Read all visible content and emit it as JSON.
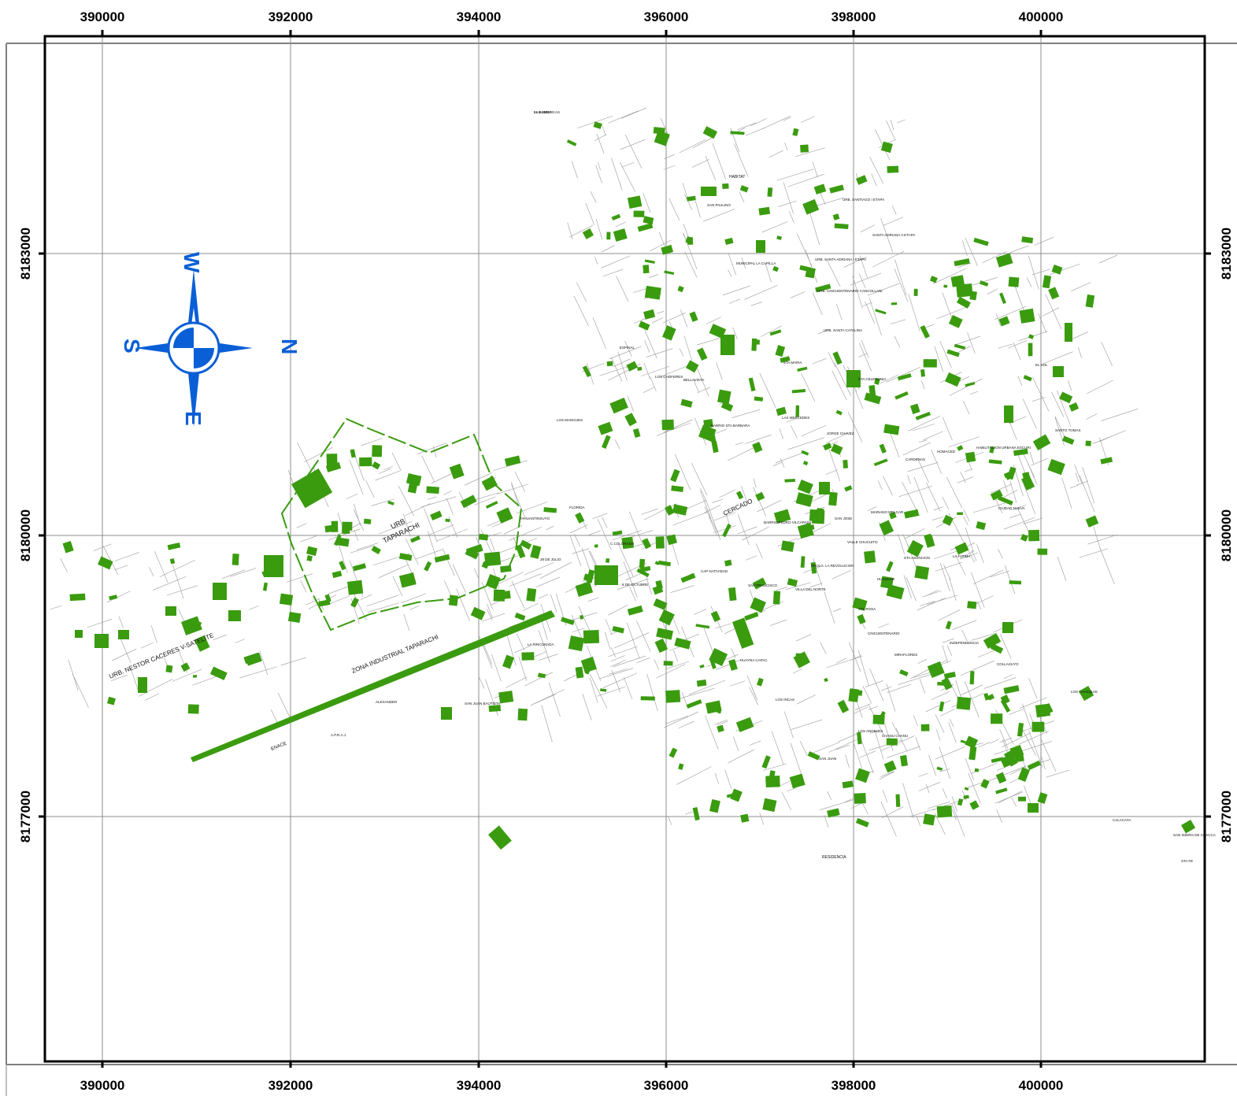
{
  "map": {
    "colors": {
      "green_area": "#3a9b0f",
      "grid_line": "#8c8c8c",
      "frame": "#000000",
      "compass": "#0a5fd6",
      "street": "#9a9a9a"
    },
    "grid": {
      "x_ticks": [
        "390000",
        "392000",
        "394000",
        "396000",
        "398000",
        "400000"
      ],
      "y_ticks": [
        "8183000",
        "8180000",
        "8177000"
      ]
    },
    "compass": {
      "top": "W",
      "right": "N",
      "bottom": "E",
      "left": "S",
      "icon": "compass-rose-icon"
    },
    "labels": {
      "major": [
        "URB",
        "TAPARACHI",
        "ZONA INDUSTRIAL TAPARACHI",
        "URB. NESTOR CACERES V-SATELITE",
        "CERCADO",
        "ENACE",
        "HABITAT",
        "RESIDENCIA"
      ],
      "minor": [
        "LAS AMERICAS",
        "SAN PAULINO",
        "URB. SANTIAGO I ETAPA",
        "SANTA ADRIANA II ETAPA",
        "URB. SANTA ADRIANA I ETAPA",
        "MUNICIPAL LA CAPILLA",
        "URB. CINCUENTENARIO CANCOLLANI",
        "URB. SANTA CATALINA",
        "STA MARIA",
        "ESPINAL",
        "LOS CHOFERES",
        "BELLAVISTA",
        "BARRIO STA BARBARA",
        "LAS MERCEDES",
        "JORGE CHAVEZ",
        "STA CELEDONIA",
        "LOS MANGUES",
        "FLORIDA",
        "TAHUANTINSUYO",
        "28 DE JULIO",
        "C.COLORADO",
        "8 DE OCTUBRE",
        "BARRIO PEDRO VILCAPAZA",
        "SAN JOSE",
        "MARIANO MELGAR",
        "CIUDAD NUEVA",
        "HUASCAR",
        "VALLE CHUCUITO",
        "PROLG. LA REVOLUCION",
        "SAN FRANCISCO",
        "VILLA DEL NORTE",
        "STA ROSA",
        "CINCUENTENARIO",
        "MIRAFLORES",
        "INDEPENDENCIA",
        "COLLASUYO",
        "CAP NATIVIDAD",
        "HUAYNA CAPAC",
        "LOS INCAS",
        "LOS ANGELES",
        "CHANU CHANU",
        "CALACAYA",
        "SAN ISIDRO DE CCACCA",
        "STA FE",
        "LOS CHASQUIS",
        "EL SOL",
        "SANTO TOMAS",
        "HABILITACION URBANA ESCURI",
        "HOMACED",
        "CARDENAS",
        "STA ASUNCION",
        "LA FATIMA",
        "SAN JUAN BAUTISTA",
        "ALEXANDER",
        "A.P.R.A.J.",
        "SAN JUAN",
        "LA RINCONADA",
        "EL BUENO"
      ]
    }
  }
}
